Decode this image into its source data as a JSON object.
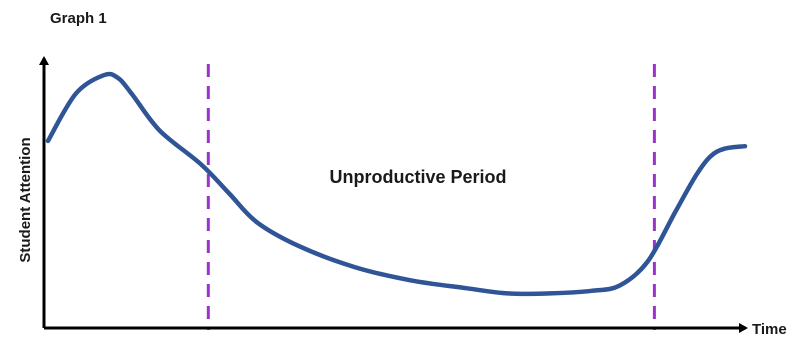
{
  "chart_data": {
    "type": "line",
    "title": "Graph 1",
    "xlabel": "Time",
    "ylabel": "Student Attention",
    "xlim": [
      0,
      100
    ],
    "ylim": [
      0,
      100
    ],
    "grid": false,
    "annotation": "Unproductive Period",
    "series": [
      {
        "color": "#2f5597",
        "x": [
          0,
          4,
          8,
          10,
          12,
          16,
          22,
          26,
          30,
          36,
          44,
          52,
          60,
          66,
          72,
          78,
          82,
          86,
          90,
          93,
          95,
          97,
          100
        ],
        "y": [
          70,
          88,
          95,
          94,
          88,
          74,
          61,
          50,
          39,
          30,
          22,
          17,
          14,
          12,
          12,
          13,
          15,
          24,
          43,
          57,
          64,
          67,
          68
        ]
      }
    ],
    "vlines": [
      {
        "x": 23,
        "color": "#9933cc",
        "style": "dashed"
      },
      {
        "x": 87,
        "color": "#9933cc",
        "style": "dashed"
      }
    ]
  }
}
